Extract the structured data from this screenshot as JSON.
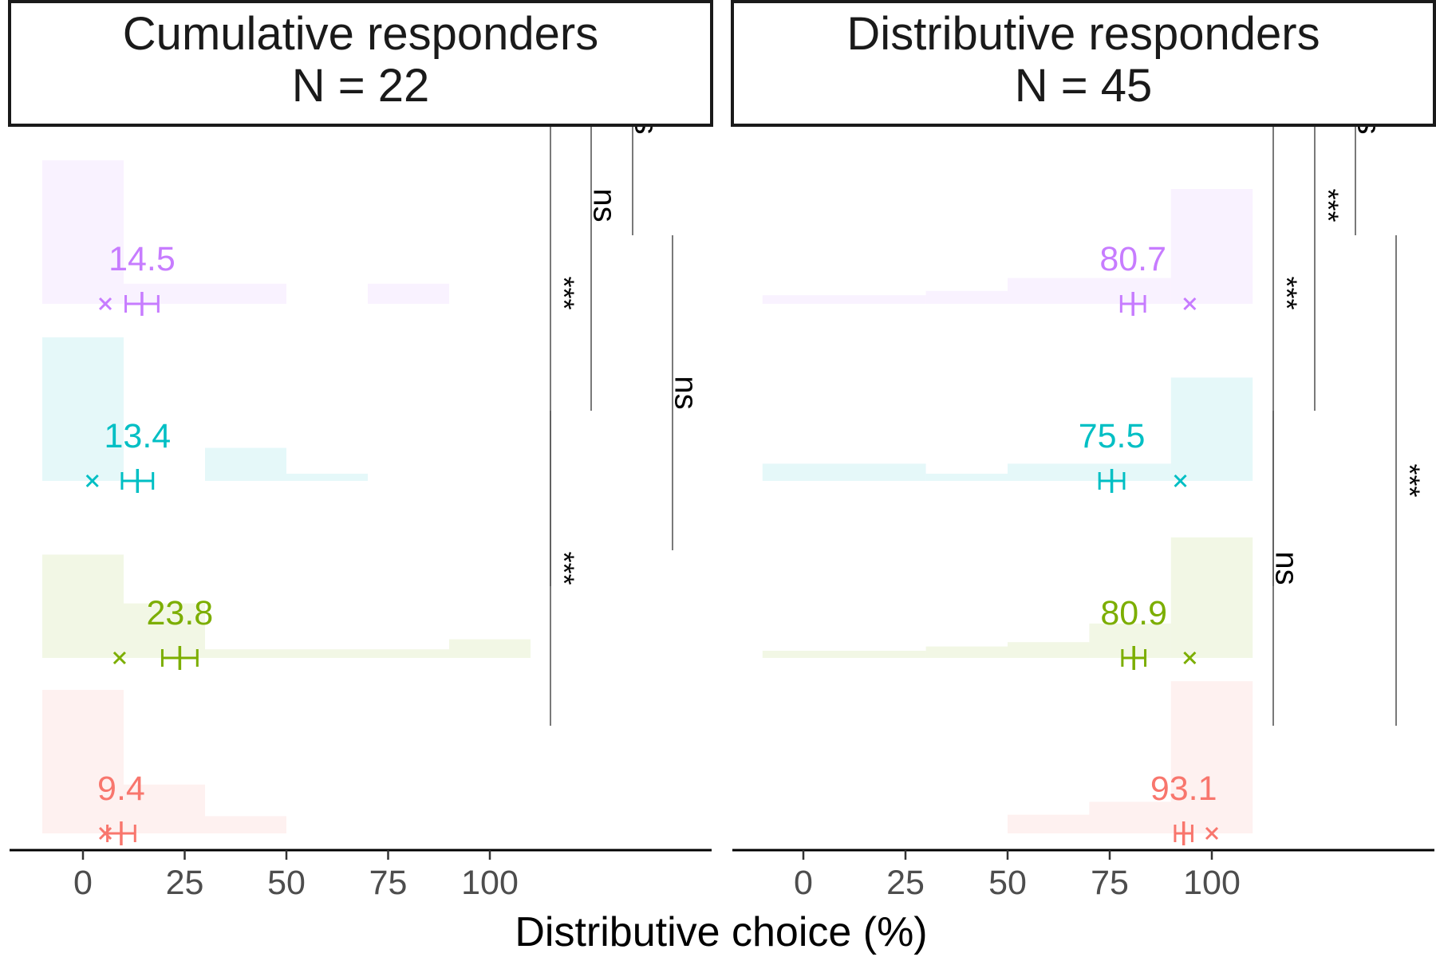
{
  "chart_data": {
    "type": "bar",
    "xlabel": "Distributive choice (%)",
    "x_ticks": [
      0,
      25,
      50,
      75,
      100
    ],
    "xlim": [
      -11,
      111
    ],
    "legend": "none",
    "grid": false,
    "colors": {
      "violet": "#C77CFF",
      "cyan": "#00BFC4",
      "green": "#7CAE00",
      "salmon": "#F8766D"
    },
    "condition_order": [
      "violet",
      "cyan",
      "green",
      "salmon"
    ],
    "panels": [
      {
        "id": "cumulative",
        "strip_title": "Cumulative responders",
        "strip_n": "N = 22",
        "conditions": [
          {
            "key": "violet",
            "mean_label": "14.5",
            "mean": 14.5,
            "se_low": 10.5,
            "se_high": 18.5,
            "cross_x": 5.5,
            "histogram": [
              {
                "x0": -10,
                "x1": 10,
                "rel_height": 1.0
              },
              {
                "x0": 10,
                "x1": 50,
                "rel_height": 0.14
              },
              {
                "x0": 70,
                "x1": 90,
                "rel_height": 0.14
              }
            ]
          },
          {
            "key": "cyan",
            "mean_label": "13.4",
            "mean": 13.4,
            "se_low": 9.6,
            "se_high": 17.2,
            "cross_x": 2.3,
            "histogram": [
              {
                "x0": -10,
                "x1": 10,
                "rel_height": 1.0
              },
              {
                "x0": 30,
                "x1": 50,
                "rel_height": 0.23
              },
              {
                "x0": 50,
                "x1": 70,
                "rel_height": 0.05
              }
            ]
          },
          {
            "key": "green",
            "mean_label": "23.8",
            "mean": 23.8,
            "se_low": 19.5,
            "se_high": 28.1,
            "cross_x": 9.0,
            "histogram": [
              {
                "x0": -10,
                "x1": 10,
                "rel_height": 0.72
              },
              {
                "x0": 10,
                "x1": 30,
                "rel_height": 0.38
              },
              {
                "x0": 30,
                "x1": 90,
                "rel_height": 0.06
              },
              {
                "x0": 90,
                "x1": 110,
                "rel_height": 0.13
              }
            ]
          },
          {
            "key": "salmon",
            "mean_label": "9.4",
            "mean": 9.4,
            "se_low": 6.0,
            "se_high": 12.8,
            "cross_x": 5.5,
            "histogram": [
              {
                "x0": -10,
                "x1": 10,
                "rel_height": 1.0
              },
              {
                "x0": 10,
                "x1": 30,
                "rel_height": 0.34
              },
              {
                "x0": 30,
                "x1": 50,
                "rel_height": 0.12
              }
            ]
          }
        ],
        "comparisons": [
          {
            "from": 1,
            "to": 2,
            "label": "***",
            "column": 0
          },
          {
            "from": 2,
            "to": 3,
            "label": "***",
            "column": 0
          },
          {
            "from": 1,
            "to": 3,
            "label": "ns",
            "column": 1
          },
          {
            "from": 0,
            "to": 3,
            "label": "ns",
            "column": 2
          },
          {
            "from": 0,
            "to": 1,
            "label": "ns",
            "column": 3
          }
        ]
      },
      {
        "id": "distributive",
        "strip_title": "Distributive responders",
        "strip_n": "N = 45",
        "conditions": [
          {
            "key": "violet",
            "mean_label": "80.7",
            "mean": 80.7,
            "se_low": 77.8,
            "se_high": 83.6,
            "cross_x": 94.6,
            "histogram": [
              {
                "x0": -10,
                "x1": 30,
                "rel_height": 0.06
              },
              {
                "x0": 30,
                "x1": 50,
                "rel_height": 0.09
              },
              {
                "x0": 50,
                "x1": 90,
                "rel_height": 0.18
              },
              {
                "x0": 90,
                "x1": 110,
                "rel_height": 0.8
              }
            ]
          },
          {
            "key": "cyan",
            "mean_label": "75.5",
            "mean": 75.5,
            "se_low": 72.5,
            "se_high": 78.5,
            "cross_x": 92.3,
            "histogram": [
              {
                "x0": -10,
                "x1": 30,
                "rel_height": 0.12
              },
              {
                "x0": 30,
                "x1": 50,
                "rel_height": 0.05
              },
              {
                "x0": 50,
                "x1": 90,
                "rel_height": 0.12
              },
              {
                "x0": 90,
                "x1": 110,
                "rel_height": 0.72
              }
            ]
          },
          {
            "key": "green",
            "mean_label": "80.9",
            "mean": 80.9,
            "se_low": 78.1,
            "se_high": 83.7,
            "cross_x": 94.6,
            "histogram": [
              {
                "x0": -10,
                "x1": 30,
                "rel_height": 0.05
              },
              {
                "x0": 30,
                "x1": 50,
                "rel_height": 0.08
              },
              {
                "x0": 50,
                "x1": 70,
                "rel_height": 0.11
              },
              {
                "x0": 70,
                "x1": 90,
                "rel_height": 0.24
              },
              {
                "x0": 90,
                "x1": 110,
                "rel_height": 0.84
              }
            ]
          },
          {
            "key": "salmon",
            "mean_label": "93.1",
            "mean": 93.1,
            "se_low": 91.0,
            "se_high": 95.2,
            "cross_x": 100.0,
            "histogram": [
              {
                "x0": 50,
                "x1": 70,
                "rel_height": 0.13
              },
              {
                "x0": 70,
                "x1": 90,
                "rel_height": 0.22
              },
              {
                "x0": 90,
                "x1": 110,
                "rel_height": 1.06
              }
            ]
          }
        ],
        "comparisons": [
          {
            "from": 1,
            "to": 2,
            "label": "ns",
            "column": 0
          },
          {
            "from": 2,
            "to": 3,
            "label": "***",
            "column": 0
          },
          {
            "from": 1,
            "to": 3,
            "label": "***",
            "column": 1
          },
          {
            "from": 0,
            "to": 3,
            "label": "ns",
            "column": 2
          },
          {
            "from": 0,
            "to": 2,
            "label": "***",
            "column": 3
          }
        ]
      }
    ]
  }
}
